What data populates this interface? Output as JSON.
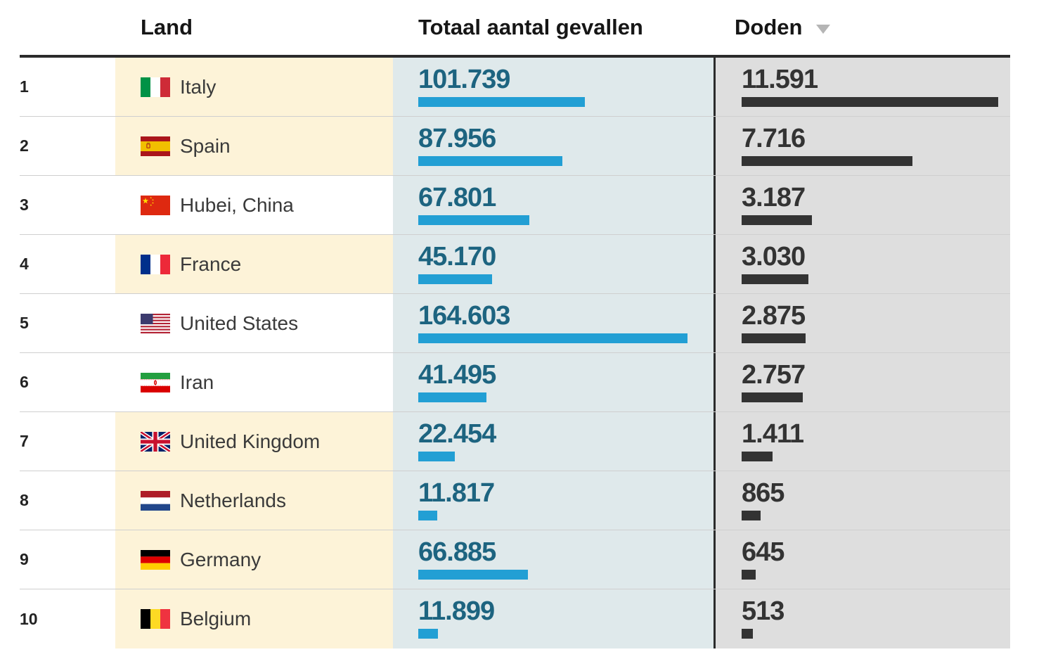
{
  "table": {
    "columns": {
      "rank": {
        "label": ""
      },
      "country": {
        "label": "Land"
      },
      "cases": {
        "label": "Totaal aantal gevallen"
      },
      "deaths": {
        "label": "Doden",
        "sort_icon": "sort-desc-triangle",
        "sort_direction": "desc"
      }
    },
    "rows": [
      {
        "rank": "1",
        "country": "Italy",
        "flag": "flag-italy",
        "cases_display": "101.739",
        "cases_value": 101739,
        "deaths_display": "11.591",
        "deaths_value": 11591,
        "highlighted": true
      },
      {
        "rank": "2",
        "country": "Spain",
        "flag": "flag-spain",
        "cases_display": "87.956",
        "cases_value": 87956,
        "deaths_display": "7.716",
        "deaths_value": 7716,
        "highlighted": true
      },
      {
        "rank": "3",
        "country": "Hubei, China",
        "flag": "flag-china",
        "cases_display": "67.801",
        "cases_value": 67801,
        "deaths_display": "3.187",
        "deaths_value": 3187,
        "highlighted": false
      },
      {
        "rank": "4",
        "country": "France",
        "flag": "flag-france",
        "cases_display": "45.170",
        "cases_value": 45170,
        "deaths_display": "3.030",
        "deaths_value": 3030,
        "highlighted": true
      },
      {
        "rank": "5",
        "country": "United States",
        "flag": "flag-united-states",
        "cases_display": "164.603",
        "cases_value": 164603,
        "deaths_display": "2.875",
        "deaths_value": 2875,
        "highlighted": false
      },
      {
        "rank": "6",
        "country": "Iran",
        "flag": "flag-iran",
        "cases_display": "41.495",
        "cases_value": 41495,
        "deaths_display": "2.757",
        "deaths_value": 2757,
        "highlighted": false
      },
      {
        "rank": "7",
        "country": "United Kingdom",
        "flag": "flag-united-kingdom",
        "cases_display": "22.454",
        "cases_value": 22454,
        "deaths_display": "1.411",
        "deaths_value": 1411,
        "highlighted": true
      },
      {
        "rank": "8",
        "country": "Netherlands",
        "flag": "flag-netherlands",
        "cases_display": "11.817",
        "cases_value": 11817,
        "deaths_display": "865",
        "deaths_value": 865,
        "highlighted": true
      },
      {
        "rank": "9",
        "country": "Germany",
        "flag": "flag-germany",
        "cases_display": "66.885",
        "cases_value": 66885,
        "deaths_display": "645",
        "deaths_value": 645,
        "highlighted": true
      },
      {
        "rank": "10",
        "country": "Belgium",
        "flag": "flag-belgium",
        "cases_display": "11.899",
        "cases_value": 11899,
        "deaths_display": "513",
        "deaths_value": 513,
        "highlighted": true
      }
    ],
    "max": {
      "cases_value": 164603,
      "deaths_value": 11591
    }
  },
  "colors": {
    "cases_bar": "#229fd4",
    "cases_number": "#1d6480",
    "cases_cell_bg": "#dfe9eb",
    "deaths_bar": "#333333",
    "deaths_number": "#333333",
    "deaths_cell_bg": "#dedede",
    "highlight_row_bg": "#fdf3d8",
    "header_rule": "#2b2b2b",
    "row_divider": "#cfcfcf",
    "sort_triangle": "#b5b5b5"
  },
  "chart_data": {
    "type": "table",
    "columns": [
      "Land",
      "Totaal aantal gevallen",
      "Doden"
    ],
    "rows": [
      [
        "Italy",
        101739,
        11591
      ],
      [
        "Spain",
        87956,
        7716
      ],
      [
        "Hubei, China",
        67801,
        3187
      ],
      [
        "France",
        45170,
        3030
      ],
      [
        "United States",
        164603,
        2875
      ],
      [
        "Iran",
        41495,
        2757
      ],
      [
        "United Kingdom",
        22454,
        1411
      ],
      [
        "Netherlands",
        11817,
        865
      ],
      [
        "Germany",
        66885,
        645
      ],
      [
        "Belgium",
        11899,
        513
      ]
    ],
    "sorted_by": "Doden",
    "sort_direction": "desc",
    "number_format": "thousands-dot",
    "bar_series": [
      {
        "name": "Totaal aantal gevallen",
        "color": "#229fd4",
        "scale_max": 164603
      },
      {
        "name": "Doden",
        "color": "#333333",
        "scale_max": 11591
      }
    ],
    "highlighted_rows": [
      "Italy",
      "Spain",
      "France",
      "United Kingdom",
      "Netherlands",
      "Germany",
      "Belgium"
    ]
  }
}
